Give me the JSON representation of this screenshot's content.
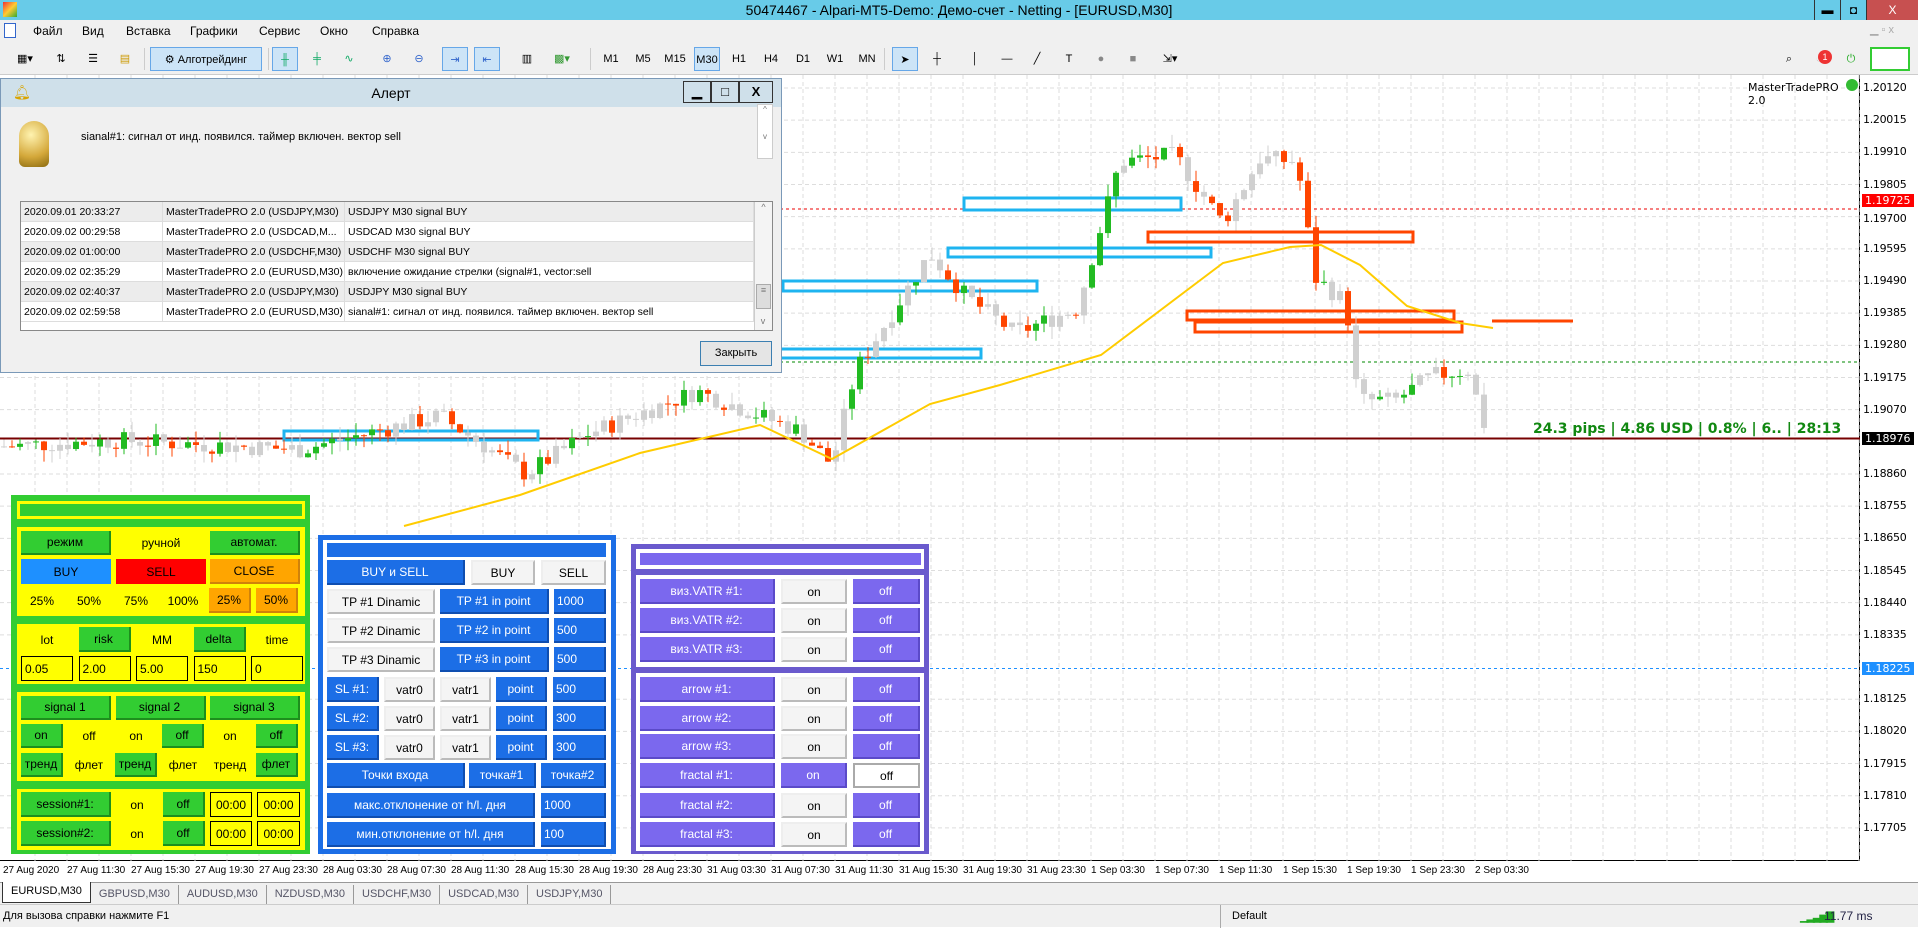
{
  "window": {
    "title": "50474467 - Alpari-MT5-Demo: Демо-счет - Netting - [EURUSD,M30]",
    "minimize": "▬",
    "maximize": "◘",
    "close": "X"
  },
  "menu": [
    "Файл",
    "Вид",
    "Вставка",
    "Графики",
    "Сервис",
    "Окно",
    "Справка"
  ],
  "toolbar": {
    "algotrading_label": "Алготрейдинг",
    "timeframes": [
      "M1",
      "M5",
      "M15",
      "M30",
      "H1",
      "H4",
      "D1",
      "W1",
      "MN"
    ],
    "selected_timeframe": "M30",
    "notification_count": "1"
  },
  "alert": {
    "title": "Алерт",
    "message": "sianal#1: сигнал от инд. появился. таймер включен. вектор sell",
    "rows": [
      [
        "2020.09.01 20:33:27",
        "MasterTradePRO 2.0 (USDJPY,M30)",
        "USDJPY M30 signal BUY"
      ],
      [
        "2020.09.02 00:29:58",
        "MasterTradePRO 2.0 (USDCAD,M...",
        "USDCAD M30 signal BUY"
      ],
      [
        "2020.09.02 01:00:00",
        "MasterTradePRO 2.0 (USDCHF,M30)",
        "USDCHF M30 signal BUY"
      ],
      [
        "2020.09.02 02:35:29",
        "MasterTradePRO 2.0 (EURUSD,M30)",
        "включение ожидание стрелки (signal#1, vector:sell"
      ],
      [
        "2020.09.02 02:40:37",
        "MasterTradePRO 2.0 (USDJPY,M30)",
        "USDJPY M30 signal BUY"
      ],
      [
        "2020.09.02 02:59:58",
        "MasterTradePRO 2.0 (EURUSD,M30)",
        "sianal#1: сигнал от инд. появился. таймер включен. вектор sell"
      ]
    ],
    "close_button": "Закрыть"
  },
  "chart": {
    "symbol": "EURUSD",
    "timeframe": "M30",
    "indicator_label": "MasterTradePRO 2.0",
    "info_text": "24.3 pips | 4.86 USD | 0.8% | 6.. | 28:13",
    "price_ticks": [
      "1.20120",
      "1.20015",
      "1.19910",
      "1.19805",
      "1.19700",
      "1.19595",
      "1.19490",
      "1.19385",
      "1.19280",
      "1.19175",
      "1.19070",
      "1.18860",
      "1.18755",
      "1.18650",
      "1.18545",
      "1.18440",
      "1.18335",
      "1.18125",
      "1.18020",
      "1.17915",
      "1.17810",
      "1.17705"
    ],
    "time_ticks": [
      "27 Aug 2020",
      "27 Aug 11:30",
      "27 Aug 15:30",
      "27 Aug 19:30",
      "27 Aug 23:30",
      "28 Aug 03:30",
      "28 Aug 07:30",
      "28 Aug 11:30",
      "28 Aug 15:30",
      "28 Aug 19:30",
      "28 Aug 23:30",
      "31 Aug 03:30",
      "31 Aug 07:30",
      "31 Aug 11:30",
      "31 Aug 15:30",
      "31 Aug 19:30",
      "31 Aug 23:30",
      "1 Sep 03:30",
      "1 Sep 07:30",
      "1 Sep 11:30",
      "1 Sep 15:30",
      "1 Sep 19:30",
      "1 Sep 23:30",
      "2 Sep 03:30"
    ],
    "current_price": "1.18976",
    "sell_level": "1.19725",
    "blue_level": "1.18225",
    "colors": {
      "bull": "#22bb22",
      "bear": "#ff4500",
      "neutral": "#d0d0d0",
      "ma": "#ffcc00",
      "zone_buy": "#1eb4f0",
      "zone_sell": "#ff4500"
    }
  },
  "panel_green": {
    "mode": [
      "режим",
      "ручной",
      "автомат."
    ],
    "trade": [
      "BUY",
      "SELL",
      "CLOSE"
    ],
    "percents": [
      "25%",
      "50%",
      "75%",
      "100%",
      "25%",
      "50%"
    ],
    "params": [
      "lot",
      "risk",
      "MM",
      "delta",
      "time"
    ],
    "param_values": [
      "0.05",
      "2.00",
      "5.00",
      "150",
      "0"
    ],
    "signals": [
      "signal 1",
      "signal 2",
      "signal 3"
    ],
    "onoff": [
      "on",
      "off",
      "on",
      "off",
      "on",
      "off"
    ],
    "trend": [
      "тренд",
      "флет",
      "тренд",
      "флет",
      "тренд",
      "флет"
    ],
    "sessions": [
      {
        "label": "session#1:",
        "on": "on",
        "off": "off",
        "from": "00:00",
        "to": "00:00"
      },
      {
        "label": "session#2:",
        "on": "on",
        "off": "off",
        "from": "00:00",
        "to": "00:00"
      }
    ]
  },
  "panel_blue": {
    "direction": [
      "BUY и SELL",
      "BUY",
      "SELL"
    ],
    "tp": [
      {
        "dyn": "TP #1 Dinamic",
        "pt": "TP #1 in point",
        "val": "1000"
      },
      {
        "dyn": "TP #2 Dinamic",
        "pt": "TP #2 in point",
        "val": "500"
      },
      {
        "dyn": "TP #3 Dinamic",
        "pt": "TP #3 in point",
        "val": "500"
      }
    ],
    "sl": [
      {
        "label": "SL #1:",
        "a": "vatr0",
        "b": "vatr1",
        "pt": "point",
        "val": "500"
      },
      {
        "label": "SL #2:",
        "a": "vatr0",
        "b": "vatr1",
        "pt": "point",
        "val": "300"
      },
      {
        "label": "SL #3:",
        "a": "vatr0",
        "b": "vatr1",
        "pt": "point",
        "val": "300"
      }
    ],
    "entry": [
      "Точки входа",
      "точка#1",
      "точка#2"
    ],
    "max_dev": {
      "label": "макс.отклонение от h/l. дня",
      "val": "1000"
    },
    "min_dev": {
      "label": "мин.отклонение от h/l. дня",
      "val": "100"
    }
  },
  "panel_purple": {
    "rows": [
      {
        "label": "виз.VATR #1:",
        "on": "on",
        "off": "off",
        "state": "off"
      },
      {
        "label": "виз.VATR #2:",
        "on": "on",
        "off": "off",
        "state": "off"
      },
      {
        "label": "виз.VATR #3:",
        "on": "on",
        "off": "off",
        "state": "off"
      },
      {
        "label": "arrow #1:",
        "on": "on",
        "off": "off",
        "state": "off"
      },
      {
        "label": "arrow #2:",
        "on": "on",
        "off": "off",
        "state": "off"
      },
      {
        "label": "arrow #3:",
        "on": "on",
        "off": "off",
        "state": "off"
      },
      {
        "label": "fractal #1:",
        "on": "on",
        "off": "off",
        "state": "on"
      },
      {
        "label": "fractal #2:",
        "on": "on",
        "off": "off",
        "state": "off"
      },
      {
        "label": "fractal #3:",
        "on": "on",
        "off": "off",
        "state": "off"
      }
    ]
  },
  "tabs": [
    "EURUSD,M30",
    "GBPUSD,M30",
    "AUDUSD,M30",
    "NZDUSD,M30",
    "USDCHF,M30",
    "USDCAD,M30",
    "USDJPY,M30"
  ],
  "active_tab": "EURUSD,M30",
  "status": {
    "help": "Для вызова справки нажмите F1",
    "profile": "Default",
    "ping": "11.77 ms"
  }
}
